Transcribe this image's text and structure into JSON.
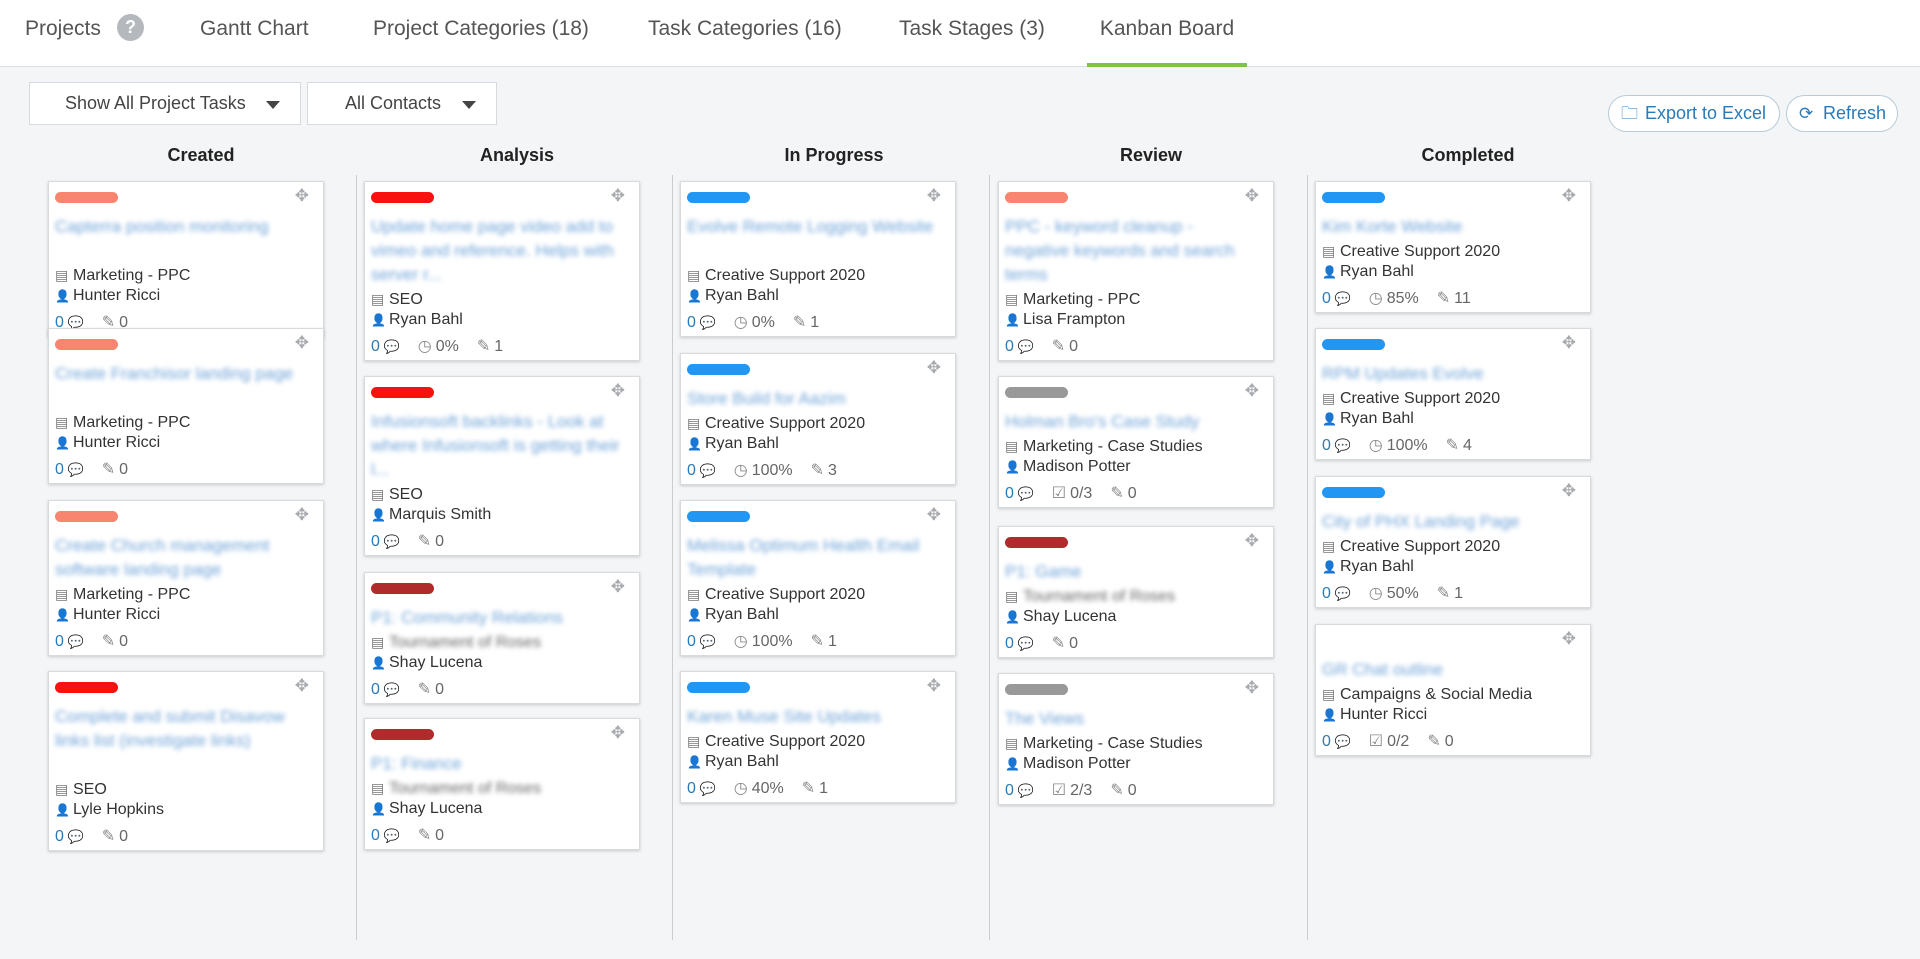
{
  "nav": {
    "projects": "Projects",
    "help": "?",
    "gantt": "Gantt Chart",
    "project_categories": "Project Categories (18)",
    "task_categories": "Task Categories (16)",
    "task_stages": "Task Stages (3)",
    "kanban": "Kanban Board"
  },
  "toolbar": {
    "filter_tasks": "Show All Project Tasks",
    "filter_contacts": "All Contacts",
    "export": "Export to Excel",
    "refresh": "Refresh"
  },
  "colors": {
    "accent_green": "#7cc34a",
    "link_blue": "#2a7ab8",
    "salmon": "#f88570",
    "red": "#f7110f",
    "darkred": "#b02b2b",
    "blue": "#2196f3",
    "gray": "#999999"
  },
  "columns": [
    {
      "title": "Created",
      "cards": [
        {
          "color": "salmon",
          "title": "Capterra position monitoring",
          "category": "Marketing - PPC",
          "assignee": "Hunter Ricci",
          "comments": "0",
          "edits": "0"
        },
        {
          "color": "salmon",
          "title": "Create Franchisor landing page",
          "category": "Marketing - PPC",
          "assignee": "Hunter Ricci",
          "comments": "0",
          "edits": "0"
        },
        {
          "color": "salmon",
          "title": "Create Church management software landing page",
          "category": "Marketing - PPC",
          "assignee": "Hunter Ricci",
          "comments": "0",
          "edits": "0"
        },
        {
          "color": "red",
          "title": "Complete and submit Disavow links list (investigate links)",
          "category": "SEO",
          "assignee": "Lyle Hopkins",
          "comments": "0",
          "edits": "0"
        }
      ]
    },
    {
      "title": "Analysis",
      "cards": [
        {
          "color": "red",
          "title": "Update home page video add to vimeo and reference. Helps with server r...",
          "category": "SEO",
          "assignee": "Ryan Bahl",
          "comments": "0",
          "progress": "0%",
          "edits": "1"
        },
        {
          "color": "red",
          "title": "Infusionsoft backlinks - Look at where Infusionsoft is getting their l...",
          "category": "SEO",
          "assignee": "Marquis Smith",
          "comments": "0",
          "edits": "0"
        },
        {
          "color": "darkred",
          "title": "P1: Community Relations",
          "category": "Tournament of Roses",
          "assignee": "Shay Lucena",
          "comments": "0",
          "edits": "0",
          "blur_category": true
        },
        {
          "color": "darkred",
          "title": "P1: Finance",
          "category": "Tournament of Roses",
          "assignee": "Shay Lucena",
          "comments": "0",
          "edits": "0",
          "blur_category": true
        }
      ]
    },
    {
      "title": "In Progress",
      "cards": [
        {
          "color": "blue",
          "title": "Evolve Remote Logging Website",
          "category": "Creative Support 2020",
          "assignee": "Ryan Bahl",
          "comments": "0",
          "progress": "0%",
          "edits": "1"
        },
        {
          "color": "blue",
          "title": "Store Build for Aazim",
          "category": "Creative Support 2020",
          "assignee": "Ryan Bahl",
          "comments": "0",
          "progress": "100%",
          "edits": "3"
        },
        {
          "color": "blue",
          "title": "Melissa Optimum Health Email Template",
          "category": "Creative Support 2020",
          "assignee": "Ryan Bahl",
          "comments": "0",
          "progress": "100%",
          "edits": "1"
        },
        {
          "color": "blue",
          "title": "Karen Muse Site Updates",
          "category": "Creative Support 2020",
          "assignee": "Ryan Bahl",
          "comments": "0",
          "progress": "40%",
          "edits": "1"
        }
      ]
    },
    {
      "title": "Review",
      "cards": [
        {
          "color": "salmon",
          "title": "PPC - keyword cleanup - negative keywords and search terms",
          "category": "Marketing - PPC",
          "assignee": "Lisa Frampton",
          "comments": "0",
          "edits": "0"
        },
        {
          "color": "gray",
          "title": "Holman Bro's Case Study",
          "category": "Marketing - Case Studies",
          "assignee": "Madison Potter",
          "comments": "0",
          "checklist": "0/3",
          "edits": "0"
        },
        {
          "color": "darkred",
          "title": "P1: Game",
          "category": "Tournament of Roses",
          "assignee": "Shay Lucena",
          "comments": "0",
          "edits": "0",
          "blur_category": true
        },
        {
          "color": "gray",
          "title": "The Views",
          "category": "Marketing - Case Studies",
          "assignee": "Madison Potter",
          "comments": "0",
          "checklist": "2/3",
          "edits": "0"
        }
      ]
    },
    {
      "title": "Completed",
      "cards": [
        {
          "color": "blue",
          "title": "Kim Korte Website",
          "category": "Creative Support 2020",
          "assignee": "Ryan Bahl",
          "comments": "0",
          "progress": "85%",
          "edits": "11"
        },
        {
          "color": "blue",
          "title": "RPM Updates Evolve",
          "category": "Creative Support 2020",
          "assignee": "Ryan Bahl",
          "comments": "0",
          "progress": "100%",
          "edits": "4"
        },
        {
          "color": "blue",
          "title": "City of PHX Landing Page",
          "category": "Creative Support 2020",
          "assignee": "Ryan Bahl",
          "comments": "0",
          "progress": "50%",
          "edits": "1"
        },
        {
          "color": "none",
          "title": "GR Chat outline",
          "category": "Campaigns & Social Media",
          "assignee": "Hunter Ricci",
          "comments": "0",
          "checklist": "0/2",
          "edits": "0"
        }
      ]
    }
  ]
}
